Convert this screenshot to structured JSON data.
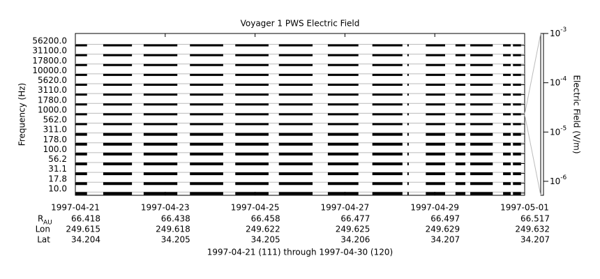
{
  "chart_data": {
    "type": "stackplot",
    "title": "Voyager 1 PWS Electric Field",
    "y_label": "Frequency (Hz)",
    "y2_label": "Electric Field (V/m)",
    "categories": [
      "56200.0",
      "31100.0",
      "17800.0",
      "10000.0",
      "5620.0",
      "3110.0",
      "1780.0",
      "1000.0",
      "562.0",
      "311.0",
      "178.0",
      "100.0",
      "56.2",
      "31.1",
      "17.8",
      "10.0"
    ],
    "segments": [
      [
        0,
        0.26
      ],
      [
        0.62,
        1.26
      ],
      [
        1.52,
        2.27
      ],
      [
        2.55,
        3.29
      ],
      [
        3.56,
        4.3
      ],
      [
        4.53,
        5.28
      ],
      [
        5.62,
        6.3
      ],
      [
        6.61,
        7.28
      ],
      [
        7.39,
        7.42
      ],
      [
        7.8,
        8.23
      ],
      [
        8.46,
        8.68
      ],
      [
        8.79,
        9.29
      ],
      [
        9.52,
        9.69
      ],
      [
        9.74,
        9.92
      ]
    ],
    "xlim": [
      0,
      10
    ],
    "xticks": [
      {
        "value": 0,
        "label": "1997-04-21"
      },
      {
        "value": 2,
        "label": "1997-04-23"
      },
      {
        "value": 4,
        "label": "1997-04-25"
      },
      {
        "value": 6,
        "label": "1997-04-27"
      },
      {
        "value": 8,
        "label": "1997-04-29"
      },
      {
        "value": 10,
        "label": "1997-05-01"
      }
    ],
    "y2lim": [
      5.2e-07,
      0.001
    ],
    "y2log": true,
    "y2ticks": [
      {
        "value": 0.001,
        "label": "10",
        "exponent": "-3"
      },
      {
        "value": 0.0001,
        "label": "10",
        "exponent": "-4"
      },
      {
        "value": 1e-05,
        "label": "10",
        "exponent": "-5"
      },
      {
        "value": 1e-06,
        "label": "10",
        "exponent": "-6"
      }
    ],
    "ephemeris": [
      {
        "label": "R",
        "subscript": "AU",
        "values": [
          66.418,
          66.438,
          66.458,
          66.477,
          66.497,
          66.517
        ]
      },
      {
        "label": "Lon",
        "values": [
          249.615,
          249.618,
          249.622,
          249.625,
          249.629,
          249.632
        ]
      },
      {
        "label": "Lat",
        "values": [
          34.204,
          34.205,
          34.205,
          34.206,
          34.207,
          34.207
        ]
      }
    ],
    "footer": "1997-04-21 (111) through 1997-04-30 (120)"
  }
}
